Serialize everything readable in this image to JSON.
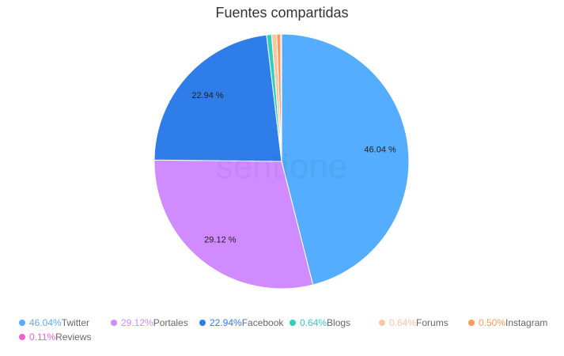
{
  "chart_data": {
    "type": "pie",
    "title": "Fuentes compartidas",
    "watermark": "sentione",
    "slices": [
      {
        "name": "Twitter",
        "value": 46.04,
        "label": "46.04 %",
        "legend_value": "46.04%",
        "color": "#54adff"
      },
      {
        "name": "Portales",
        "value": 29.12,
        "label": "29.12 %",
        "legend_value": "29.12%",
        "color": "#cf8bff"
      },
      {
        "name": "Facebook",
        "value": 22.94,
        "label": "22.94 %",
        "legend_value": "22.94%",
        "color": "#2f7de8"
      },
      {
        "name": "Blogs",
        "value": 0.64,
        "legend_value": "0.64%",
        "color": "#2ecfbd"
      },
      {
        "name": "Forums",
        "value": 0.64,
        "legend_value": "0.64%",
        "color": "#ffc4a1"
      },
      {
        "name": "Instagram",
        "value": 0.5,
        "legend_value": "0.50%",
        "color": "#ff9a5a"
      },
      {
        "name": "Reviews",
        "value": 0.11,
        "legend_value": "0.11%",
        "color": "#f15fd0"
      }
    ],
    "legend_placement": "bottom"
  }
}
